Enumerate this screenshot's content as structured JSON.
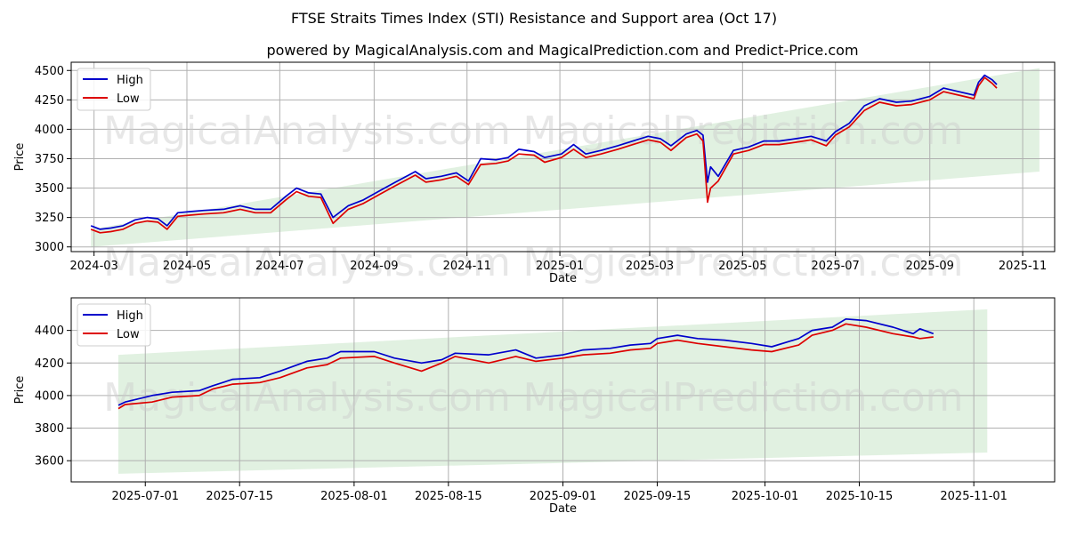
{
  "title": "FTSE Straits Times Index (STI) Resistance and Support area (Oct 17)",
  "subtitle": "powered by MagicalAnalysis.com and MagicalPrediction.com and Predict-Price.com",
  "watermarks": [
    "MagicalAnalysis.com",
    "MagicalPrediction.com"
  ],
  "colors": {
    "high": "#0000cc",
    "low": "#dd0000",
    "band": "#c8e6c8",
    "grid": "#b0b0b0"
  },
  "chart_data": [
    {
      "type": "line",
      "xlabel": "Date",
      "ylabel": "Price",
      "legend": "top-left",
      "grid": true,
      "xlim": [
        "2024-02-15",
        "2025-11-22"
      ],
      "ylim": [
        2960,
        4570
      ],
      "x_ticks": [
        "2024-03",
        "2024-05",
        "2024-07",
        "2024-09",
        "2024-11",
        "2025-01",
        "2025-03",
        "2025-05",
        "2025-07",
        "2025-09",
        "2025-11"
      ],
      "y_ticks": [
        3000,
        3250,
        3500,
        3750,
        4000,
        4250,
        4500
      ],
      "band": {
        "x": [
          "2024-02-28",
          "2025-11-12"
        ],
        "upper": [
          3150,
          4520
        ],
        "lower": [
          3000,
          3640
        ]
      },
      "series": [
        {
          "name": "High",
          "points": [
            [
              "2024-02-28",
              3180
            ],
            [
              "2024-03-05",
              3150
            ],
            [
              "2024-03-12",
              3160
            ],
            [
              "2024-03-20",
              3180
            ],
            [
              "2024-03-28",
              3230
            ],
            [
              "2024-04-05",
              3250
            ],
            [
              "2024-04-12",
              3240
            ],
            [
              "2024-04-18",
              3180
            ],
            [
              "2024-04-25",
              3290
            ],
            [
              "2024-05-03",
              3300
            ],
            [
              "2024-05-12",
              3310
            ],
            [
              "2024-05-25",
              3320
            ],
            [
              "2024-06-05",
              3350
            ],
            [
              "2024-06-15",
              3320
            ],
            [
              "2024-06-25",
              3320
            ],
            [
              "2024-07-05",
              3430
            ],
            [
              "2024-07-12",
              3500
            ],
            [
              "2024-07-20",
              3460
            ],
            [
              "2024-07-28",
              3450
            ],
            [
              "2024-08-05",
              3250
            ],
            [
              "2024-08-15",
              3350
            ],
            [
              "2024-08-25",
              3400
            ],
            [
              "2024-09-05",
              3480
            ],
            [
              "2024-09-15",
              3550
            ],
            [
              "2024-09-28",
              3640
            ],
            [
              "2024-10-05",
              3580
            ],
            [
              "2024-10-15",
              3600
            ],
            [
              "2024-10-25",
              3630
            ],
            [
              "2024-11-02",
              3560
            ],
            [
              "2024-11-10",
              3750
            ],
            [
              "2024-11-20",
              3740
            ],
            [
              "2024-11-28",
              3760
            ],
            [
              "2024-12-05",
              3830
            ],
            [
              "2024-12-15",
              3810
            ],
            [
              "2024-12-22",
              3760
            ],
            [
              "2025-01-02",
              3790
            ],
            [
              "2025-01-10",
              3870
            ],
            [
              "2025-01-18",
              3790
            ],
            [
              "2025-01-28",
              3820
            ],
            [
              "2025-02-08",
              3860
            ],
            [
              "2025-02-18",
              3900
            ],
            [
              "2025-02-28",
              3940
            ],
            [
              "2025-03-08",
              3920
            ],
            [
              "2025-03-15",
              3860
            ],
            [
              "2025-03-25",
              3960
            ],
            [
              "2025-04-01",
              3990
            ],
            [
              "2025-04-05",
              3950
            ],
            [
              "2025-04-08",
              3550
            ],
            [
              "2025-04-10",
              3680
            ],
            [
              "2025-04-15",
              3600
            ],
            [
              "2025-04-25",
              3820
            ],
            [
              "2025-05-05",
              3850
            ],
            [
              "2025-05-15",
              3900
            ],
            [
              "2025-05-25",
              3900
            ],
            [
              "2025-06-05",
              3920
            ],
            [
              "2025-06-15",
              3940
            ],
            [
              "2025-06-25",
              3900
            ],
            [
              "2025-07-01",
              3980
            ],
            [
              "2025-07-10",
              4050
            ],
            [
              "2025-07-20",
              4200
            ],
            [
              "2025-07-30",
              4260
            ],
            [
              "2025-08-10",
              4230
            ],
            [
              "2025-08-20",
              4240
            ],
            [
              "2025-09-01",
              4280
            ],
            [
              "2025-09-10",
              4350
            ],
            [
              "2025-09-20",
              4320
            ],
            [
              "2025-09-30",
              4290
            ],
            [
              "2025-10-03",
              4400
            ],
            [
              "2025-10-07",
              4460
            ],
            [
              "2025-10-12",
              4420
            ],
            [
              "2025-10-15",
              4380
            ]
          ]
        },
        {
          "name": "Low",
          "points": [
            [
              "2024-02-28",
              3150
            ],
            [
              "2024-03-05",
              3120
            ],
            [
              "2024-03-12",
              3130
            ],
            [
              "2024-03-20",
              3150
            ],
            [
              "2024-03-28",
              3200
            ],
            [
              "2024-04-05",
              3220
            ],
            [
              "2024-04-12",
              3210
            ],
            [
              "2024-04-18",
              3150
            ],
            [
              "2024-04-25",
              3260
            ],
            [
              "2024-05-03",
              3270
            ],
            [
              "2024-05-12",
              3280
            ],
            [
              "2024-05-25",
              3290
            ],
            [
              "2024-06-05",
              3320
            ],
            [
              "2024-06-15",
              3290
            ],
            [
              "2024-06-25",
              3290
            ],
            [
              "2024-07-05",
              3400
            ],
            [
              "2024-07-12",
              3470
            ],
            [
              "2024-07-20",
              3430
            ],
            [
              "2024-07-28",
              3420
            ],
            [
              "2024-08-05",
              3200
            ],
            [
              "2024-08-15",
              3320
            ],
            [
              "2024-08-25",
              3370
            ],
            [
              "2024-09-05",
              3450
            ],
            [
              "2024-09-15",
              3520
            ],
            [
              "2024-09-28",
              3610
            ],
            [
              "2024-10-05",
              3550
            ],
            [
              "2024-10-15",
              3570
            ],
            [
              "2024-10-25",
              3600
            ],
            [
              "2024-11-02",
              3530
            ],
            [
              "2024-11-10",
              3700
            ],
            [
              "2024-11-20",
              3710
            ],
            [
              "2024-11-28",
              3730
            ],
            [
              "2024-12-05",
              3790
            ],
            [
              "2024-12-15",
              3780
            ],
            [
              "2024-12-22",
              3720
            ],
            [
              "2025-01-02",
              3760
            ],
            [
              "2025-01-10",
              3830
            ],
            [
              "2025-01-18",
              3760
            ],
            [
              "2025-01-28",
              3790
            ],
            [
              "2025-02-08",
              3830
            ],
            [
              "2025-02-18",
              3870
            ],
            [
              "2025-02-28",
              3910
            ],
            [
              "2025-03-08",
              3890
            ],
            [
              "2025-03-15",
              3820
            ],
            [
              "2025-03-25",
              3930
            ],
            [
              "2025-04-01",
              3960
            ],
            [
              "2025-04-05",
              3900
            ],
            [
              "2025-04-08",
              3380
            ],
            [
              "2025-04-10",
              3500
            ],
            [
              "2025-04-15",
              3560
            ],
            [
              "2025-04-25",
              3790
            ],
            [
              "2025-05-05",
              3820
            ],
            [
              "2025-05-15",
              3870
            ],
            [
              "2025-05-25",
              3870
            ],
            [
              "2025-06-05",
              3890
            ],
            [
              "2025-06-15",
              3910
            ],
            [
              "2025-06-25",
              3860
            ],
            [
              "2025-07-01",
              3950
            ],
            [
              "2025-07-10",
              4020
            ],
            [
              "2025-07-20",
              4160
            ],
            [
              "2025-07-30",
              4230
            ],
            [
              "2025-08-10",
              4200
            ],
            [
              "2025-08-20",
              4210
            ],
            [
              "2025-09-01",
              4250
            ],
            [
              "2025-09-10",
              4320
            ],
            [
              "2025-09-20",
              4290
            ],
            [
              "2025-09-30",
              4260
            ],
            [
              "2025-10-03",
              4370
            ],
            [
              "2025-10-07",
              4440
            ],
            [
              "2025-10-12",
              4390
            ],
            [
              "2025-10-15",
              4350
            ]
          ]
        }
      ]
    },
    {
      "type": "line",
      "xlabel": "Date",
      "ylabel": "Price",
      "legend": "top-left",
      "grid": true,
      "xlim": [
        "2025-06-20",
        "2025-11-13"
      ],
      "ylim": [
        3470,
        4600
      ],
      "x_ticks": [
        "2025-07-01",
        "2025-07-15",
        "2025-08-01",
        "2025-08-15",
        "2025-09-01",
        "2025-09-15",
        "2025-10-01",
        "2025-10-15",
        "2025-11-01"
      ],
      "y_ticks": [
        3600,
        3800,
        4000,
        4200,
        4400
      ],
      "band": {
        "x": [
          "2025-06-27",
          "2025-11-03"
        ],
        "upper": [
          4250,
          4530
        ],
        "lower": [
          3520,
          3650
        ]
      },
      "series": [
        {
          "name": "High",
          "points": [
            [
              "2025-06-27",
              3940
            ],
            [
              "2025-06-28",
              3960
            ],
            [
              "2025-07-02",
              4000
            ],
            [
              "2025-07-05",
              4020
            ],
            [
              "2025-07-09",
              4030
            ],
            [
              "2025-07-11",
              4060
            ],
            [
              "2025-07-14",
              4100
            ],
            [
              "2025-07-18",
              4110
            ],
            [
              "2025-07-21",
              4150
            ],
            [
              "2025-07-25",
              4210
            ],
            [
              "2025-07-28",
              4230
            ],
            [
              "2025-07-30",
              4270
            ],
            [
              "2025-08-04",
              4270
            ],
            [
              "2025-08-07",
              4230
            ],
            [
              "2025-08-11",
              4200
            ],
            [
              "2025-08-14",
              4220
            ],
            [
              "2025-08-16",
              4260
            ],
            [
              "2025-08-21",
              4250
            ],
            [
              "2025-08-25",
              4280
            ],
            [
              "2025-08-28",
              4230
            ],
            [
              "2025-09-01",
              4250
            ],
            [
              "2025-09-04",
              4280
            ],
            [
              "2025-09-08",
              4290
            ],
            [
              "2025-09-11",
              4310
            ],
            [
              "2025-09-14",
              4320
            ],
            [
              "2025-09-15",
              4350
            ],
            [
              "2025-09-18",
              4370
            ],
            [
              "2025-09-21",
              4350
            ],
            [
              "2025-09-25",
              4340
            ],
            [
              "2025-09-29",
              4320
            ],
            [
              "2025-10-02",
              4300
            ],
            [
              "2025-10-06",
              4350
            ],
            [
              "2025-10-08",
              4400
            ],
            [
              "2025-10-11",
              4420
            ],
            [
              "2025-10-13",
              4470
            ],
            [
              "2025-10-16",
              4460
            ],
            [
              "2025-10-20",
              4420
            ],
            [
              "2025-10-23",
              4380
            ],
            [
              "2025-10-24",
              4410
            ],
            [
              "2025-10-26",
              4380
            ]
          ]
        },
        {
          "name": "Low",
          "points": [
            [
              "2025-06-27",
              3920
            ],
            [
              "2025-06-28",
              3945
            ],
            [
              "2025-07-02",
              3960
            ],
            [
              "2025-07-05",
              3990
            ],
            [
              "2025-07-09",
              4000
            ],
            [
              "2025-07-11",
              4040
            ],
            [
              "2025-07-14",
              4070
            ],
            [
              "2025-07-18",
              4080
            ],
            [
              "2025-07-21",
              4110
            ],
            [
              "2025-07-25",
              4170
            ],
            [
              "2025-07-28",
              4190
            ],
            [
              "2025-07-30",
              4230
            ],
            [
              "2025-08-04",
              4240
            ],
            [
              "2025-08-07",
              4200
            ],
            [
              "2025-08-11",
              4150
            ],
            [
              "2025-08-14",
              4200
            ],
            [
              "2025-08-16",
              4240
            ],
            [
              "2025-08-21",
              4200
            ],
            [
              "2025-08-25",
              4240
            ],
            [
              "2025-08-28",
              4210
            ],
            [
              "2025-09-01",
              4230
            ],
            [
              "2025-09-04",
              4250
            ],
            [
              "2025-09-08",
              4260
            ],
            [
              "2025-09-11",
              4280
            ],
            [
              "2025-09-14",
              4290
            ],
            [
              "2025-09-15",
              4320
            ],
            [
              "2025-09-18",
              4340
            ],
            [
              "2025-09-21",
              4320
            ],
            [
              "2025-09-25",
              4300
            ],
            [
              "2025-09-29",
              4280
            ],
            [
              "2025-10-02",
              4270
            ],
            [
              "2025-10-06",
              4310
            ],
            [
              "2025-10-08",
              4370
            ],
            [
              "2025-10-11",
              4400
            ],
            [
              "2025-10-13",
              4440
            ],
            [
              "2025-10-16",
              4420
            ],
            [
              "2025-10-20",
              4380
            ],
            [
              "2025-10-23",
              4360
            ],
            [
              "2025-10-24",
              4350
            ],
            [
              "2025-10-26",
              4360
            ]
          ]
        }
      ]
    }
  ]
}
